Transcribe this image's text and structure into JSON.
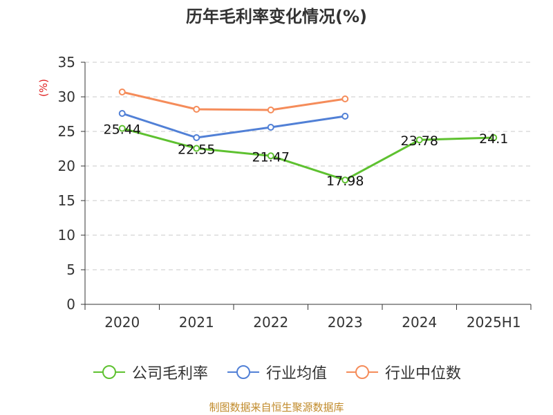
{
  "title": "历年毛利率变化情况(%)",
  "source": "制图数据来自恒生聚源数据库",
  "chart_data": {
    "type": "line",
    "title": "历年毛利率变化情况(%)",
    "ylabel": "(%)",
    "xlabel": "",
    "categories": [
      "2020",
      "2021",
      "2022",
      "2023",
      "2024",
      "2025H1"
    ],
    "ylim": [
      0,
      35
    ],
    "yticks": [
      0,
      5,
      10,
      15,
      20,
      25,
      30,
      35
    ],
    "grid": true,
    "legend_position": "bottom",
    "series": [
      {
        "name": "公司毛利率",
        "color": "#5ec130",
        "values": [
          25.44,
          22.55,
          21.47,
          17.98,
          23.78,
          24.1
        ],
        "show_labels": true
      },
      {
        "name": "行业均值",
        "color": "#5180d6",
        "values": [
          27.6,
          24.1,
          25.6,
          27.2,
          null,
          null
        ],
        "show_labels": false
      },
      {
        "name": "行业中位数",
        "color": "#f58c5a",
        "values": [
          30.7,
          28.2,
          28.1,
          29.7,
          null,
          null
        ],
        "show_labels": false
      }
    ],
    "value_labels": [
      "25.44",
      "22.55",
      "21.47",
      "17.98",
      "23.78",
      "24.1"
    ]
  }
}
